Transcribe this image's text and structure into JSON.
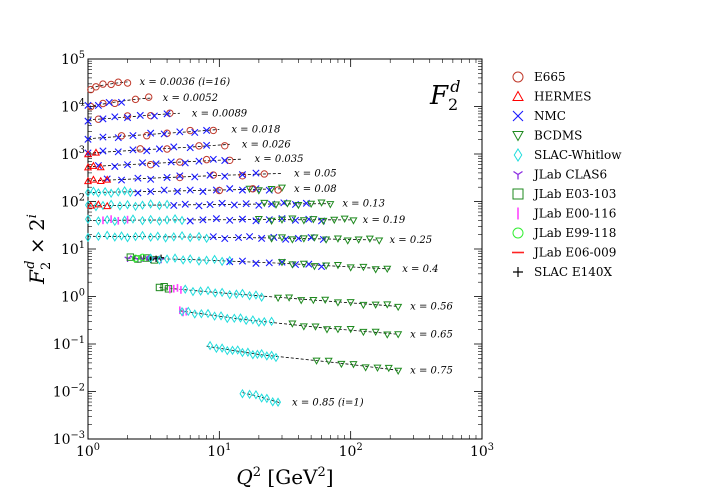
{
  "chart_data": {
    "type": "scatter",
    "title_symbol": "F_2^d",
    "xlabel": "Q^2 [GeV^2]",
    "ylabel": "F_2^d x 2^i",
    "xscale": "log",
    "yscale": "log",
    "xlim": [
      1,
      1000
    ],
    "ylim": [
      0.001,
      100000
    ],
    "x_ticks": [
      {
        "value": 1,
        "label": "10^0"
      },
      {
        "value": 10,
        "label": "10^1"
      },
      {
        "value": 100,
        "label": "10^2"
      },
      {
        "value": 1000,
        "label": "10^3"
      }
    ],
    "y_ticks": [
      {
        "value": 0.001,
        "label": "10^-3"
      },
      {
        "value": 0.01,
        "label": "10^-2"
      },
      {
        "value": 0.1,
        "label": "10^-1"
      },
      {
        "value": 1,
        "label": "10^0"
      },
      {
        "value": 10,
        "label": "10^1"
      },
      {
        "value": 100,
        "label": "10^2"
      },
      {
        "value": 1000,
        "label": "10^3"
      },
      {
        "value": 10000,
        "label": "10^4"
      },
      {
        "value": 100000,
        "label": "10^5"
      }
    ],
    "legend_position": "outside-right",
    "legend": [
      {
        "name": "E665",
        "marker": "circle-open",
        "color": "#c0392b"
      },
      {
        "name": "HERMES",
        "marker": "triangle-up-open",
        "color": "#ff0000"
      },
      {
        "name": "NMC",
        "marker": "x",
        "color": "#1a1aff"
      },
      {
        "name": "BCDMS",
        "marker": "triangle-down-open",
        "color": "#1e8a1e"
      },
      {
        "name": "SLAC-Whitlow",
        "marker": "diamond-open",
        "color": "#22dddd"
      },
      {
        "name": "JLab CLAS6",
        "marker": "tri-down",
        "color": "#8a2be2"
      },
      {
        "name": "JLab E03-103",
        "marker": "square-open",
        "color": "#1e8a1e"
      },
      {
        "name": "JLab E00-116",
        "marker": "vline",
        "color": "#ff44ff"
      },
      {
        "name": "JLab E99-118",
        "marker": "circle-open",
        "color": "#33ee33"
      },
      {
        "name": "JLab E06-009",
        "marker": "hline",
        "color": "#ff2222"
      },
      {
        "name": "SLAC E140X",
        "marker": "plus",
        "color": "#000000"
      }
    ],
    "series": [
      {
        "label": "x = 0.0036 (i=16)",
        "x": [
          1.05,
          1.2,
          1.4,
          1.6,
          1.8,
          2.0
        ],
        "y": [
          24000,
          27000,
          29000,
          31000,
          32000,
          33000
        ],
        "points": [
          {
            "d": "E665",
            "q": [
              1.05,
              1.15,
              1.3,
              1.5,
              1.7,
              2.0
            ]
          }
        ]
      },
      {
        "label": "x = 0.0052",
        "x": [
          1.0,
          1.5,
          2.0,
          2.5,
          3.0
        ],
        "y": [
          10000,
          12000,
          13500,
          14500,
          15000
        ],
        "points": [
          {
            "d": "E665",
            "q": [
              1.05,
              1.3,
              1.6,
              2.3,
              2.9
            ]
          },
          {
            "d": "NMC",
            "q": [
              1.0,
              1.2,
              1.45,
              1.8
            ]
          }
        ]
      },
      {
        "label": "x = 0.0089",
        "x": [
          1.0,
          2.0,
          3.0,
          4.0,
          5.0
        ],
        "y": [
          5200,
          6000,
          6600,
          7000,
          7200
        ],
        "points": [
          {
            "d": "E665",
            "q": [
              1.2,
              2.0,
              3.0,
              4.2
            ]
          },
          {
            "d": "NMC",
            "q": [
              1.0,
              1.3,
              1.6,
              2.0,
              2.5,
              3.2,
              4.0
            ]
          }
        ]
      },
      {
        "label": "x = 0.018",
        "x": [
          1.0,
          3.0,
          6.0,
          10.0
        ],
        "y": [
          2100,
          2600,
          2950,
          3300
        ],
        "points": [
          {
            "d": "E665",
            "q": [
              1.8,
              2.8,
              4.0,
              6.0,
              9.0
            ]
          },
          {
            "d": "NMC",
            "q": [
              1.0,
              1.3,
              1.7,
              2.2,
              3.0,
              3.8,
              5.0,
              6.5,
              8.0
            ]
          }
        ]
      },
      {
        "label": "x = 0.026",
        "x": [
          1.0,
          3.0,
          6.0,
          12.0
        ],
        "y": [
          1050,
          1250,
          1400,
          1600
        ],
        "points": [
          {
            "d": "E665",
            "q": [
              2.5,
              4.0,
              7.0,
              11.0
            ]
          },
          {
            "d": "NMC",
            "q": [
              1.0,
              1.3,
              1.7,
              2.2,
              2.8,
              3.5,
              4.5,
              6.0,
              8.0
            ]
          },
          {
            "d": "HERMES",
            "q": [
              1.0,
              1.15
            ]
          }
        ]
      },
      {
        "label": "x = 0.035",
        "x": [
          1.0,
          3.0,
          8.0,
          15.0
        ],
        "y": [
          540,
          630,
          720,
          780
        ],
        "points": [
          {
            "d": "E665",
            "q": [
              3.0,
              5.0,
              8.0,
              12.0
            ]
          },
          {
            "d": "NMC",
            "q": [
              1.2,
              1.6,
              2.0,
              2.6,
              3.3,
              4.3,
              5.5,
              7.0,
              9.0,
              11.0
            ]
          },
          {
            "d": "HERMES",
            "q": [
              1.0,
              1.1,
              1.25
            ]
          }
        ]
      },
      {
        "label": "x = 0.05",
        "x": [
          1.0,
          3.0,
          10.0,
          30.0
        ],
        "y": [
          270,
          310,
          355,
          390
        ],
        "points": [
          {
            "d": "E665",
            "q": [
              5.0,
              9.0,
              15.0,
              22.0
            ]
          },
          {
            "d": "NMC",
            "q": [
              1.4,
              1.8,
              2.4,
              3.0,
              4.0,
              5.0,
              6.5,
              8.5,
              11.0,
              15.0,
              19.0
            ]
          },
          {
            "d": "HERMES",
            "q": [
              1.0,
              1.1,
              1.25,
              1.4
            ]
          }
        ]
      },
      {
        "label": "x = 0.08",
        "x": [
          1.0,
          3.0,
          10.0,
          30.0
        ],
        "y": [
          155,
          162,
          175,
          185
        ],
        "points": [
          {
            "d": "SLAC-Whitlow",
            "q": [
              1.0,
              1.1,
              1.2,
              1.35,
              1.5,
              1.7,
              1.9,
              2.1
            ]
          },
          {
            "d": "NMC",
            "q": [
              2.4,
              3.0,
              3.8,
              4.8,
              6.0,
              7.5,
              9.5,
              12.0,
              15.0,
              19.0,
              24.0
            ]
          },
          {
            "d": "BCDMS",
            "q": [
              17.0,
              20.0,
              25.0,
              30.0
            ]
          },
          {
            "d": "E665",
            "q": [
              10.0,
              18.0,
              28.0
            ]
          }
        ]
      },
      {
        "label": "x = 0.13",
        "x": [
          1.0,
          5.0,
          20.0,
          70.0
        ],
        "y": [
          82,
          85,
          88,
          90
        ],
        "points": [
          {
            "d": "SLAC-Whitlow",
            "q": [
              1.0,
              1.15,
              1.3,
              1.5,
              1.75,
              2.0,
              2.3,
              2.6,
              3.0,
              3.5,
              4.0
            ]
          },
          {
            "d": "NMC",
            "q": [
              4.5,
              5.5,
              7.0,
              8.5,
              10.5,
              13.0,
              16.0,
              20.0,
              25.0,
              31.0,
              38.0,
              46.0
            ]
          },
          {
            "d": "BCDMS",
            "q": [
              22.0,
              27.0,
              33.0,
              40.0,
              50.0,
              60.0,
              70.0
            ]
          },
          {
            "d": "HERMES",
            "q": [
              1.05,
              1.2,
              1.4
            ]
          }
        ]
      },
      {
        "label": "x = 0.19",
        "x": [
          1.0,
          5.0,
          20.0,
          100.0
        ],
        "y": [
          40,
          41,
          41.5,
          41
        ],
        "points": [
          {
            "d": "SLAC-Whitlow",
            "q": [
              1.0,
              1.2,
              1.4,
              1.6,
              1.9,
              2.2,
              2.6,
              3.0,
              3.5,
              4.0,
              4.6,
              5.2
            ]
          },
          {
            "d": "JLab E00-116",
            "q": [
              1.3,
              1.5,
              1.7,
              2.0
            ]
          },
          {
            "d": "NMC",
            "q": [
              6.0,
              7.5,
              9.5,
              12.0,
              15.0,
              19.0,
              24.0,
              30.0,
              38.0,
              48.0,
              60.0
            ]
          },
          {
            "d": "BCDMS",
            "q": [
              20.0,
              25.0,
              30.0,
              36.0,
              44.0,
              52.0,
              62.0,
              75.0,
              90.0,
              105.0
            ]
          }
        ]
      },
      {
        "label": "x = 0.25",
        "x": [
          1.0,
          5.0,
          30.0,
          160.0
        ],
        "y": [
          18.5,
          18.0,
          17.0,
          15.5
        ],
        "points": [
          {
            "d": "SLAC-Whitlow",
            "q": [
              1.0,
              1.2,
              1.4,
              1.6,
              1.8,
              2.0,
              2.3,
              2.6,
              3.0,
              3.4,
              3.9,
              4.5,
              5.2,
              6.0,
              7.0,
              8.0
            ]
          },
          {
            "d": "NMC",
            "q": [
              9.0,
              11.0,
              14.0,
              17.0,
              21.0,
              26.0,
              32.0,
              40.0,
              50.0,
              62.0
            ]
          },
          {
            "d": "BCDMS",
            "q": [
              25.0,
              30.0,
              36.0,
              44.0,
              53.0,
              65.0,
              80.0,
              95.0,
              115.0,
              140.0,
              165.0
            ]
          }
        ]
      },
      {
        "label": "x = 0.4",
        "x": [
          2.0,
          6.0,
          30.0,
          200.0
        ],
        "y": [
          6.4,
          6.0,
          5.0,
          3.8
        ],
        "points": [
          {
            "d": "JLab CLAS6",
            "q": [
              2.0,
              2.2,
              2.4,
              2.6,
              2.8,
              3.0,
              3.3,
              3.6
            ]
          },
          {
            "d": "JLab E03-103",
            "q": [
              2.1,
              2.4,
              2.8,
              3.2
            ]
          },
          {
            "d": "JLab E99-118",
            "q": [
              2.3,
              2.6
            ]
          },
          {
            "d": "SLAC E140X",
            "q": [
              3.0,
              3.3,
              3.6
            ]
          },
          {
            "d": "SLAC-Whitlow",
            "q": [
              3.0,
              3.5,
              4.0,
              4.6,
              5.3,
              6.0,
              7.0,
              8.0,
              9.2,
              10.5,
              12.0
            ]
          },
          {
            "d": "NMC",
            "q": [
              12.0,
              15.0,
              19.0,
              24.0,
              30.0,
              38.0,
              48.0,
              60.0
            ]
          },
          {
            "d": "BCDMS",
            "q": [
              30.0,
              36.0,
              44.0,
              53.0,
              65.0,
              80.0,
              100.0,
              125.0,
              155.0,
              190.0
            ]
          }
        ]
      },
      {
        "label": "x = 0.56",
        "x": [
          3.5,
          10.0,
          50.0,
          230.0
        ],
        "y": [
          1.55,
          1.2,
          0.85,
          0.62
        ],
        "points": [
          {
            "d": "JLab E03-103",
            "q": [
              3.5,
              3.8,
              4.1
            ]
          },
          {
            "d": "JLab E00-116",
            "q": [
              4.2,
              4.5,
              4.8,
              5.1
            ]
          },
          {
            "d": "SLAC-Whitlow",
            "q": [
              5.5,
              6.3,
              7.2,
              8.2,
              9.3,
              10.5,
              12.0,
              13.5,
              15.0,
              17.0,
              19.0,
              21.0
            ]
          },
          {
            "d": "BCDMS",
            "q": [
              28.0,
              34.0,
              42.0,
              52.0,
              64.0,
              80.0,
              100.0,
              125.0,
              155.0,
              190.0,
              230.0
            ]
          }
        ]
      },
      {
        "label": "x = 0.65",
        "x": [
          5.0,
          15.0,
          60.0,
          230.0
        ],
        "y": [
          0.5,
          0.33,
          0.22,
          0.16
        ],
        "points": [
          {
            "d": "JLab E00-116",
            "q": [
              5.0,
              5.3,
              5.6
            ]
          },
          {
            "d": "SLAC-Whitlow",
            "q": [
              5.2,
              5.8,
              6.5,
              7.3,
              8.2,
              9.2,
              10.3,
              11.5,
              13.0,
              14.5,
              16.0,
              18.0,
              20.0,
              22.0,
              25.0
            ]
          },
          {
            "d": "BCDMS",
            "q": [
              36.0,
              44.0,
              54.0,
              66.0,
              80.0,
              100.0,
              125.0,
              155.0,
              190.0,
              230.0
            ]
          }
        ]
      },
      {
        "label": "x = 0.75",
        "x": [
          8.0,
          20.0,
          80.0,
          230.0
        ],
        "y": [
          0.09,
          0.06,
          0.04,
          0.028
        ],
        "points": [
          {
            "d": "SLAC-Whitlow",
            "q": [
              8.5,
              9.5,
              10.5,
              11.5,
              12.6,
              13.8,
              15.0,
              16.5,
              18.0,
              19.5,
              21.0,
              23.0,
              25.0,
              27.0
            ]
          },
          {
            "d": "BCDMS",
            "q": [
              55.0,
              68.0,
              85.0,
              105.0,
              130.0,
              160.0,
              195.0,
              230.0
            ]
          }
        ]
      },
      {
        "label": "x = 0.85 (i=1)",
        "x": [
          15.0,
          20.0,
          25.0,
          29.0
        ],
        "y": [
          0.0095,
          0.0078,
          0.0065,
          0.0058
        ],
        "points": [
          {
            "d": "SLAC-Whitlow",
            "q": [
              15.0,
              17.0,
              19.0,
              21.0,
              23.0,
              25.5,
              28.0
            ]
          }
        ]
      }
    ]
  }
}
